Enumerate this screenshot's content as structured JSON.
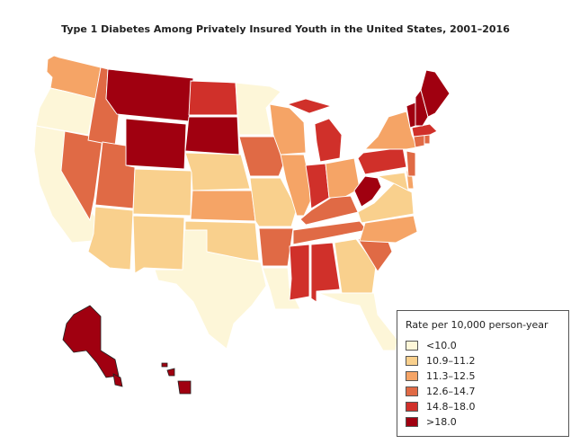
{
  "title": "Type 1 Diabetes Among Privately Insured Youth in the United States, 2001–2016",
  "legend": {
    "title": "Rate per 10,000 person-year",
    "bins": [
      {
        "label": "<10.0",
        "color": "#fdf6d8"
      },
      {
        "label": "10.9–11.2",
        "color": "#f9d08d"
      },
      {
        "label": "11.3–12.5",
        "color": "#f5a466"
      },
      {
        "label": "12.6–14.7",
        "color": "#e06a45"
      },
      {
        "label": "14.8–18.0",
        "color": "#d0302a"
      },
      {
        "label": ">18.0",
        "color": "#a00010"
      }
    ]
  },
  "states": {
    "WA": 2,
    "OR": 0,
    "CA": 0,
    "NV": 3,
    "ID": 3,
    "MT": 5,
    "WY": 5,
    "UT": 3,
    "AZ": 1,
    "CO": 1,
    "NM": 1,
    "ND": 4,
    "SD": 5,
    "NE": 1,
    "KS": 2,
    "OK": 1,
    "TX": 0,
    "MN": 0,
    "IA": 3,
    "MO": 1,
    "AR": 3,
    "LA": 0,
    "WI": 2,
    "IL": 2,
    "MI": 4,
    "IN": 4,
    "OH": 2,
    "KY": 3,
    "TN": 3,
    "MS": 4,
    "AL": 4,
    "GA": 1,
    "FL": 0,
    "SC": 3,
    "NC": 2,
    "VA": 1,
    "WV": 5,
    "PA": 4,
    "NY": 2,
    "VT": 5,
    "NH": 5,
    "ME": 5,
    "MA": 4,
    "CT": 3,
    "RI": 3,
    "NJ": 3,
    "DE": 2,
    "MD": 1,
    "AK": 5,
    "HI": 5
  }
}
